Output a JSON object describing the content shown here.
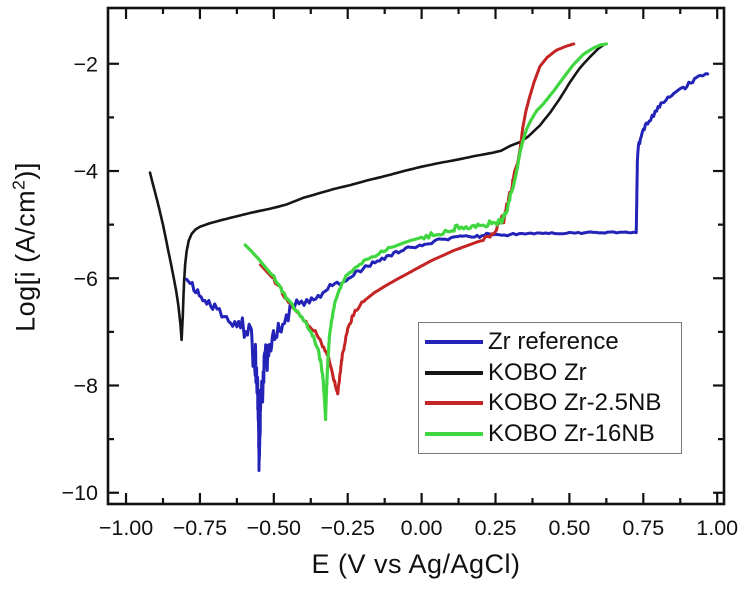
{
  "figure": {
    "background": "#ffffff",
    "axis_color": "#111111"
  },
  "chart_data": {
    "type": "line",
    "title": "",
    "xlabel": "E (V vs Ag/AgCl)",
    "ylabel_pre": "Log[i (A/cm",
    "ylabel_sup": "2",
    "ylabel_post": ")]",
    "xlim": [
      -1.061,
      1.023
    ],
    "ylim": [
      -10.21,
      -0.96
    ],
    "grid": false,
    "x_ticks": {
      "major": [
        -1.0,
        -0.75,
        -0.5,
        -0.25,
        0.0,
        0.25,
        0.5,
        0.75,
        1.0
      ],
      "labels": [
        "−1.00",
        "−0.75",
        "−0.50",
        "−0.25",
        "0.00",
        "0.25",
        "0.50",
        "0.75",
        "1.00"
      ],
      "minor": [
        -0.875,
        -0.625,
        -0.375,
        -0.125,
        0.125,
        0.375,
        0.625,
        0.875
      ]
    },
    "y_ticks": {
      "major": [
        -2,
        -4,
        -6,
        -8,
        -10
      ],
      "labels": [
        "−2",
        "−4",
        "−6",
        "−8",
        "−10"
      ],
      "minor": [
        -3,
        -5,
        -7,
        -9
      ]
    },
    "legend": {
      "position": "bottom-right",
      "entries": [
        {
          "label": "Zr reference",
          "color": "#2323b8"
        },
        {
          "label": "KOBO Zr",
          "color": "#161616"
        },
        {
          "label": "KOBO Zr-2.5NB",
          "color": "#c42424"
        },
        {
          "label": "KOBO Zr-16NB",
          "color": "#3fd63f"
        }
      ]
    },
    "series": [
      {
        "name": "KOBO Zr",
        "color": "#161616",
        "width": 2.6,
        "noise": [],
        "points": [
          [
            -0.919,
            -4.03
          ],
          [
            -0.905,
            -4.33
          ],
          [
            -0.89,
            -4.65
          ],
          [
            -0.875,
            -5.0
          ],
          [
            -0.862,
            -5.35
          ],
          [
            -0.85,
            -5.68
          ],
          [
            -0.84,
            -5.95
          ],
          [
            -0.83,
            -6.25
          ],
          [
            -0.822,
            -6.55
          ],
          [
            -0.816,
            -6.85
          ],
          [
            -0.812,
            -7.15
          ],
          [
            -0.808,
            -6.7
          ],
          [
            -0.804,
            -6.1
          ],
          [
            -0.8,
            -5.75
          ],
          [
            -0.795,
            -5.5
          ],
          [
            -0.788,
            -5.3
          ],
          [
            -0.778,
            -5.17
          ],
          [
            -0.765,
            -5.09
          ],
          [
            -0.75,
            -5.04
          ],
          [
            -0.72,
            -4.98
          ],
          [
            -0.68,
            -4.92
          ],
          [
            -0.63,
            -4.85
          ],
          [
            -0.57,
            -4.77
          ],
          [
            -0.51,
            -4.7
          ],
          [
            -0.46,
            -4.63
          ],
          [
            -0.4,
            -4.5
          ],
          [
            -0.35,
            -4.42
          ],
          [
            -0.3,
            -4.34
          ],
          [
            -0.24,
            -4.26
          ],
          [
            -0.18,
            -4.17
          ],
          [
            -0.12,
            -4.09
          ],
          [
            -0.06,
            -4.0
          ],
          [
            0.0,
            -3.92
          ],
          [
            0.06,
            -3.85
          ],
          [
            0.12,
            -3.79
          ],
          [
            0.18,
            -3.72
          ],
          [
            0.24,
            -3.66
          ],
          [
            0.27,
            -3.62
          ],
          [
            0.3,
            -3.53
          ],
          [
            0.333,
            -3.46
          ],
          [
            0.36,
            -3.36
          ],
          [
            0.4,
            -3.15
          ],
          [
            0.435,
            -2.91
          ],
          [
            0.47,
            -2.63
          ],
          [
            0.5,
            -2.36
          ],
          [
            0.535,
            -2.08
          ],
          [
            0.57,
            -1.87
          ],
          [
            0.597,
            -1.72
          ],
          [
            0.617,
            -1.64
          ]
        ]
      },
      {
        "name": "Zr reference",
        "color": "#2323b8",
        "width": 3.0,
        "noise": [
          [
            -0.78,
            -0.64,
            0.08
          ],
          [
            -0.64,
            -0.52,
            0.32
          ],
          [
            -0.52,
            -0.42,
            0.16
          ],
          [
            -0.42,
            -0.25,
            0.07
          ],
          [
            -0.25,
            0.1,
            0.035
          ],
          [
            0.1,
            0.3,
            0.03
          ],
          [
            0.3,
            0.72,
            0.015
          ],
          [
            0.735,
            0.97,
            0.045
          ]
        ],
        "points": [
          [
            -0.795,
            -6.02
          ],
          [
            -0.77,
            -6.18
          ],
          [
            -0.74,
            -6.35
          ],
          [
            -0.7,
            -6.55
          ],
          [
            -0.66,
            -6.72
          ],
          [
            -0.625,
            -6.88
          ],
          [
            -0.6,
            -7.02
          ],
          [
            -0.578,
            -7.2
          ],
          [
            -0.563,
            -7.5
          ],
          [
            -0.556,
            -7.95
          ],
          [
            -0.552,
            -8.45
          ],
          [
            -0.55,
            -9.28
          ],
          [
            -0.545,
            -8.35
          ],
          [
            -0.538,
            -8.0
          ],
          [
            -0.53,
            -7.6
          ],
          [
            -0.52,
            -7.4
          ],
          [
            -0.505,
            -7.1
          ],
          [
            -0.49,
            -6.95
          ],
          [
            -0.47,
            -6.82
          ],
          [
            -0.445,
            -6.65
          ],
          [
            -0.415,
            -6.52
          ],
          [
            -0.38,
            -6.42
          ],
          [
            -0.35,
            -6.32
          ],
          [
            -0.31,
            -6.18
          ],
          [
            -0.27,
            -6.05
          ],
          [
            -0.23,
            -5.92
          ],
          [
            -0.19,
            -5.8
          ],
          [
            -0.15,
            -5.68
          ],
          [
            -0.11,
            -5.58
          ],
          [
            -0.07,
            -5.49
          ],
          [
            -0.03,
            -5.42
          ],
          [
            0.01,
            -5.37
          ],
          [
            0.05,
            -5.31
          ],
          [
            0.09,
            -5.26
          ],
          [
            0.13,
            -5.22
          ],
          [
            0.18,
            -5.24
          ],
          [
            0.22,
            -5.18
          ],
          [
            0.26,
            -5.21
          ],
          [
            0.3,
            -5.18
          ],
          [
            0.35,
            -5.17
          ],
          [
            0.42,
            -5.16
          ],
          [
            0.5,
            -5.16
          ],
          [
            0.58,
            -5.15
          ],
          [
            0.65,
            -5.15
          ],
          [
            0.7,
            -5.15
          ],
          [
            0.726,
            -5.15
          ],
          [
            0.728,
            -4.5
          ],
          [
            0.73,
            -3.8
          ],
          [
            0.733,
            -3.55
          ],
          [
            0.74,
            -3.4
          ],
          [
            0.75,
            -3.25
          ],
          [
            0.76,
            -3.15
          ],
          [
            0.775,
            -3.03
          ],
          [
            0.79,
            -2.9
          ],
          [
            0.805,
            -2.77
          ],
          [
            0.82,
            -2.68
          ],
          [
            0.84,
            -2.6
          ],
          [
            0.86,
            -2.52
          ],
          [
            0.885,
            -2.45
          ],
          [
            0.91,
            -2.35
          ],
          [
            0.93,
            -2.28
          ],
          [
            0.95,
            -2.25
          ],
          [
            0.962,
            -2.21
          ],
          [
            0.968,
            -2.19
          ]
        ]
      },
      {
        "name": "KOBO Zr-2.5NB",
        "color": "#c42424",
        "width": 3.0,
        "noise": [
          [
            -0.5,
            -0.2,
            0.04
          ],
          [
            0.2,
            0.31,
            0.06
          ]
        ],
        "points": [
          [
            -0.545,
            -5.75
          ],
          [
            -0.52,
            -5.9
          ],
          [
            -0.5,
            -6.02
          ],
          [
            -0.475,
            -6.22
          ],
          [
            -0.455,
            -6.42
          ],
          [
            -0.435,
            -6.55
          ],
          [
            -0.41,
            -6.7
          ],
          [
            -0.385,
            -6.85
          ],
          [
            -0.36,
            -7.0
          ],
          [
            -0.335,
            -7.25
          ],
          [
            -0.315,
            -7.5
          ],
          [
            -0.3,
            -7.8
          ],
          [
            -0.29,
            -8.05
          ],
          [
            -0.284,
            -8.16
          ],
          [
            -0.278,
            -7.9
          ],
          [
            -0.27,
            -7.5
          ],
          [
            -0.26,
            -7.2
          ],
          [
            -0.25,
            -6.95
          ],
          [
            -0.235,
            -6.72
          ],
          [
            -0.215,
            -6.55
          ],
          [
            -0.19,
            -6.4
          ],
          [
            -0.16,
            -6.27
          ],
          [
            -0.125,
            -6.15
          ],
          [
            -0.09,
            -6.04
          ],
          [
            -0.05,
            -5.92
          ],
          [
            -0.01,
            -5.8
          ],
          [
            0.03,
            -5.68
          ],
          [
            0.07,
            -5.58
          ],
          [
            0.11,
            -5.48
          ],
          [
            0.15,
            -5.4
          ],
          [
            0.19,
            -5.32
          ],
          [
            0.225,
            -5.25
          ],
          [
            0.25,
            -5.1
          ],
          [
            0.265,
            -4.95
          ],
          [
            0.272,
            -4.85
          ],
          [
            0.278,
            -4.92
          ],
          [
            0.285,
            -4.7
          ],
          [
            0.295,
            -4.5
          ],
          [
            0.305,
            -4.3
          ],
          [
            0.315,
            -4.0
          ],
          [
            0.325,
            -3.85
          ],
          [
            0.333,
            -3.6
          ],
          [
            0.342,
            -3.2
          ],
          [
            0.352,
            -2.9
          ],
          [
            0.365,
            -2.63
          ],
          [
            0.38,
            -2.35
          ],
          [
            0.4,
            -2.05
          ],
          [
            0.425,
            -1.88
          ],
          [
            0.455,
            -1.75
          ],
          [
            0.49,
            -1.67
          ],
          [
            0.515,
            -1.63
          ]
        ]
      },
      {
        "name": "KOBO Zr-16NB",
        "color": "#3fd63f",
        "width": 3.2,
        "noise": [
          [
            -0.5,
            -0.1,
            0.03
          ],
          [
            0.0,
            0.3,
            0.05
          ]
        ],
        "points": [
          [
            -0.597,
            -5.38
          ],
          [
            -0.575,
            -5.5
          ],
          [
            -0.55,
            -5.65
          ],
          [
            -0.525,
            -5.82
          ],
          [
            -0.5,
            -5.98
          ],
          [
            -0.475,
            -6.2
          ],
          [
            -0.455,
            -6.4
          ],
          [
            -0.42,
            -6.62
          ],
          [
            -0.39,
            -6.85
          ],
          [
            -0.365,
            -7.1
          ],
          [
            -0.35,
            -7.35
          ],
          [
            -0.34,
            -7.6
          ],
          [
            -0.333,
            -7.9
          ],
          [
            -0.328,
            -8.3
          ],
          [
            -0.325,
            -8.62
          ],
          [
            -0.321,
            -8.0
          ],
          [
            -0.317,
            -7.5
          ],
          [
            -0.312,
            -7.1
          ],
          [
            -0.305,
            -6.8
          ],
          [
            -0.295,
            -6.5
          ],
          [
            -0.285,
            -6.3
          ],
          [
            -0.27,
            -6.1
          ],
          [
            -0.25,
            -5.93
          ],
          [
            -0.225,
            -5.8
          ],
          [
            -0.195,
            -5.68
          ],
          [
            -0.16,
            -5.57
          ],
          [
            -0.12,
            -5.47
          ],
          [
            -0.08,
            -5.38
          ],
          [
            -0.04,
            -5.3
          ],
          [
            0.0,
            -5.24
          ],
          [
            0.04,
            -5.18
          ],
          [
            0.08,
            -5.14
          ],
          [
            0.105,
            -5.1
          ],
          [
            0.12,
            -5.02
          ],
          [
            0.135,
            -5.08
          ],
          [
            0.15,
            -5.03
          ],
          [
            0.17,
            -5.05
          ],
          [
            0.19,
            -5.0
          ],
          [
            0.21,
            -5.02
          ],
          [
            0.23,
            -4.98
          ],
          [
            0.25,
            -5.0
          ],
          [
            0.265,
            -4.9
          ],
          [
            0.272,
            -4.95
          ],
          [
            0.28,
            -4.82
          ],
          [
            0.29,
            -4.7
          ],
          [
            0.3,
            -4.45
          ],
          [
            0.31,
            -4.3
          ],
          [
            0.318,
            -4.1
          ],
          [
            0.325,
            -3.9
          ],
          [
            0.333,
            -3.65
          ],
          [
            0.342,
            -3.45
          ],
          [
            0.355,
            -3.22
          ],
          [
            0.37,
            -3.05
          ],
          [
            0.39,
            -2.87
          ],
          [
            0.41,
            -2.76
          ],
          [
            0.445,
            -2.52
          ],
          [
            0.48,
            -2.26
          ],
          [
            0.513,
            -2.02
          ],
          [
            0.546,
            -1.83
          ],
          [
            0.58,
            -1.71
          ],
          [
            0.605,
            -1.65
          ],
          [
            0.625,
            -1.63
          ]
        ]
      }
    ]
  }
}
